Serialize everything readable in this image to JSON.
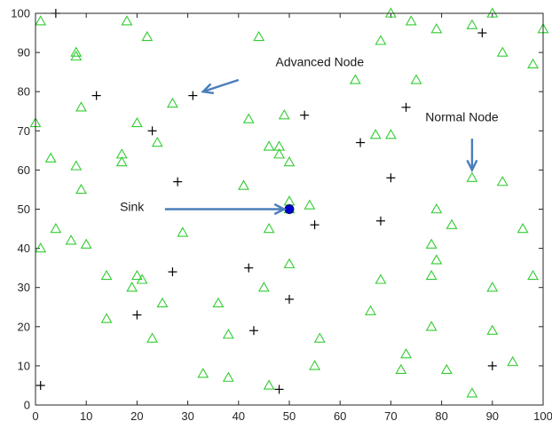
{
  "chart_data": {
    "type": "scatter",
    "xlim": [
      0,
      100
    ],
    "ylim": [
      0,
      100
    ],
    "x_ticks": [
      0,
      10,
      20,
      30,
      40,
      50,
      60,
      70,
      80,
      90,
      100
    ],
    "y_ticks": [
      0,
      10,
      20,
      30,
      40,
      50,
      60,
      70,
      80,
      90,
      100
    ],
    "grid": false,
    "colors": {
      "normal_node": "#33cc33",
      "advanced_node": "#000000",
      "sink": "#0000cc",
      "arrow": "#4a7ebb"
    },
    "series": [
      {
        "marker": "triangle",
        "points": [
          [
            1,
            98
          ],
          [
            8,
            90
          ],
          [
            8,
            89
          ],
          [
            18,
            98
          ],
          [
            22,
            94
          ],
          [
            44,
            94
          ],
          [
            70,
            100
          ],
          [
            74,
            98
          ],
          [
            79,
            96
          ],
          [
            86,
            97
          ],
          [
            90,
            100
          ],
          [
            92,
            90
          ],
          [
            100,
            96
          ],
          [
            98,
            87
          ],
          [
            9,
            76
          ],
          [
            0,
            72
          ],
          [
            20,
            72
          ],
          [
            27,
            77
          ],
          [
            63,
            83
          ],
          [
            68,
            93
          ],
          [
            75,
            83
          ],
          [
            42,
            73
          ],
          [
            49,
            74
          ],
          [
            3,
            63
          ],
          [
            8,
            61
          ],
          [
            17,
            64
          ],
          [
            17,
            62
          ],
          [
            24,
            67
          ],
          [
            46,
            66
          ],
          [
            48,
            66
          ],
          [
            48,
            64
          ],
          [
            50,
            62
          ],
          [
            67,
            69
          ],
          [
            70,
            69
          ],
          [
            9,
            55
          ],
          [
            41,
            56
          ],
          [
            50,
            52
          ],
          [
            50,
            50
          ],
          [
            54,
            51
          ],
          [
            86,
            58
          ],
          [
            92,
            57
          ],
          [
            4,
            45
          ],
          [
            1,
            40
          ],
          [
            7,
            42
          ],
          [
            10,
            41
          ],
          [
            29,
            44
          ],
          [
            46,
            45
          ],
          [
            79,
            50
          ],
          [
            82,
            46
          ],
          [
            78,
            41
          ],
          [
            79,
            37
          ],
          [
            78,
            33
          ],
          [
            96,
            45
          ],
          [
            14,
            33
          ],
          [
            19,
            30
          ],
          [
            20,
            33
          ],
          [
            21,
            32
          ],
          [
            25,
            26
          ],
          [
            36,
            26
          ],
          [
            45,
            30
          ],
          [
            50,
            36
          ],
          [
            68,
            32
          ],
          [
            66,
            24
          ],
          [
            90,
            30
          ],
          [
            98,
            33
          ],
          [
            14,
            22
          ],
          [
            23,
            17
          ],
          [
            38,
            18
          ],
          [
            56,
            17
          ],
          [
            78,
            20
          ],
          [
            90,
            19
          ],
          [
            33,
            8
          ],
          [
            38,
            7
          ],
          [
            46,
            5
          ],
          [
            55,
            10
          ],
          [
            72,
            9
          ],
          [
            73,
            13
          ],
          [
            81,
            9
          ],
          [
            86,
            3
          ],
          [
            94,
            11
          ]
        ]
      },
      {
        "marker": "plus",
        "points": [
          [
            4,
            100
          ],
          [
            88,
            95
          ],
          [
            12,
            79
          ],
          [
            31,
            79
          ],
          [
            23,
            70
          ],
          [
            53,
            74
          ],
          [
            73,
            76
          ],
          [
            64,
            67
          ],
          [
            28,
            57
          ],
          [
            70,
            58
          ],
          [
            55,
            46
          ],
          [
            68,
            47
          ],
          [
            20,
            23
          ],
          [
            27,
            34
          ],
          [
            42,
            35
          ],
          [
            50,
            27
          ],
          [
            43,
            19
          ],
          [
            1,
            5
          ],
          [
            48,
            4
          ],
          [
            90,
            10
          ]
        ]
      },
      {
        "marker": "dot",
        "points": [
          [
            50,
            50
          ]
        ]
      }
    ],
    "annotations": [
      {
        "text": "Advanced Node",
        "text_at": [
          56,
          86.5
        ],
        "arrow_from": [
          40,
          83
        ],
        "arrow_to": [
          33,
          80
        ]
      },
      {
        "text": "Normal Node",
        "text_at": [
          84,
          72.5
        ],
        "arrow_from": [
          86,
          68
        ],
        "arrow_to": [
          86,
          60
        ]
      },
      {
        "text": "Sink",
        "text_at": [
          19,
          49.5
        ],
        "arrow_from": [
          25.5,
          50
        ],
        "arrow_to": [
          49,
          50
        ]
      }
    ]
  }
}
